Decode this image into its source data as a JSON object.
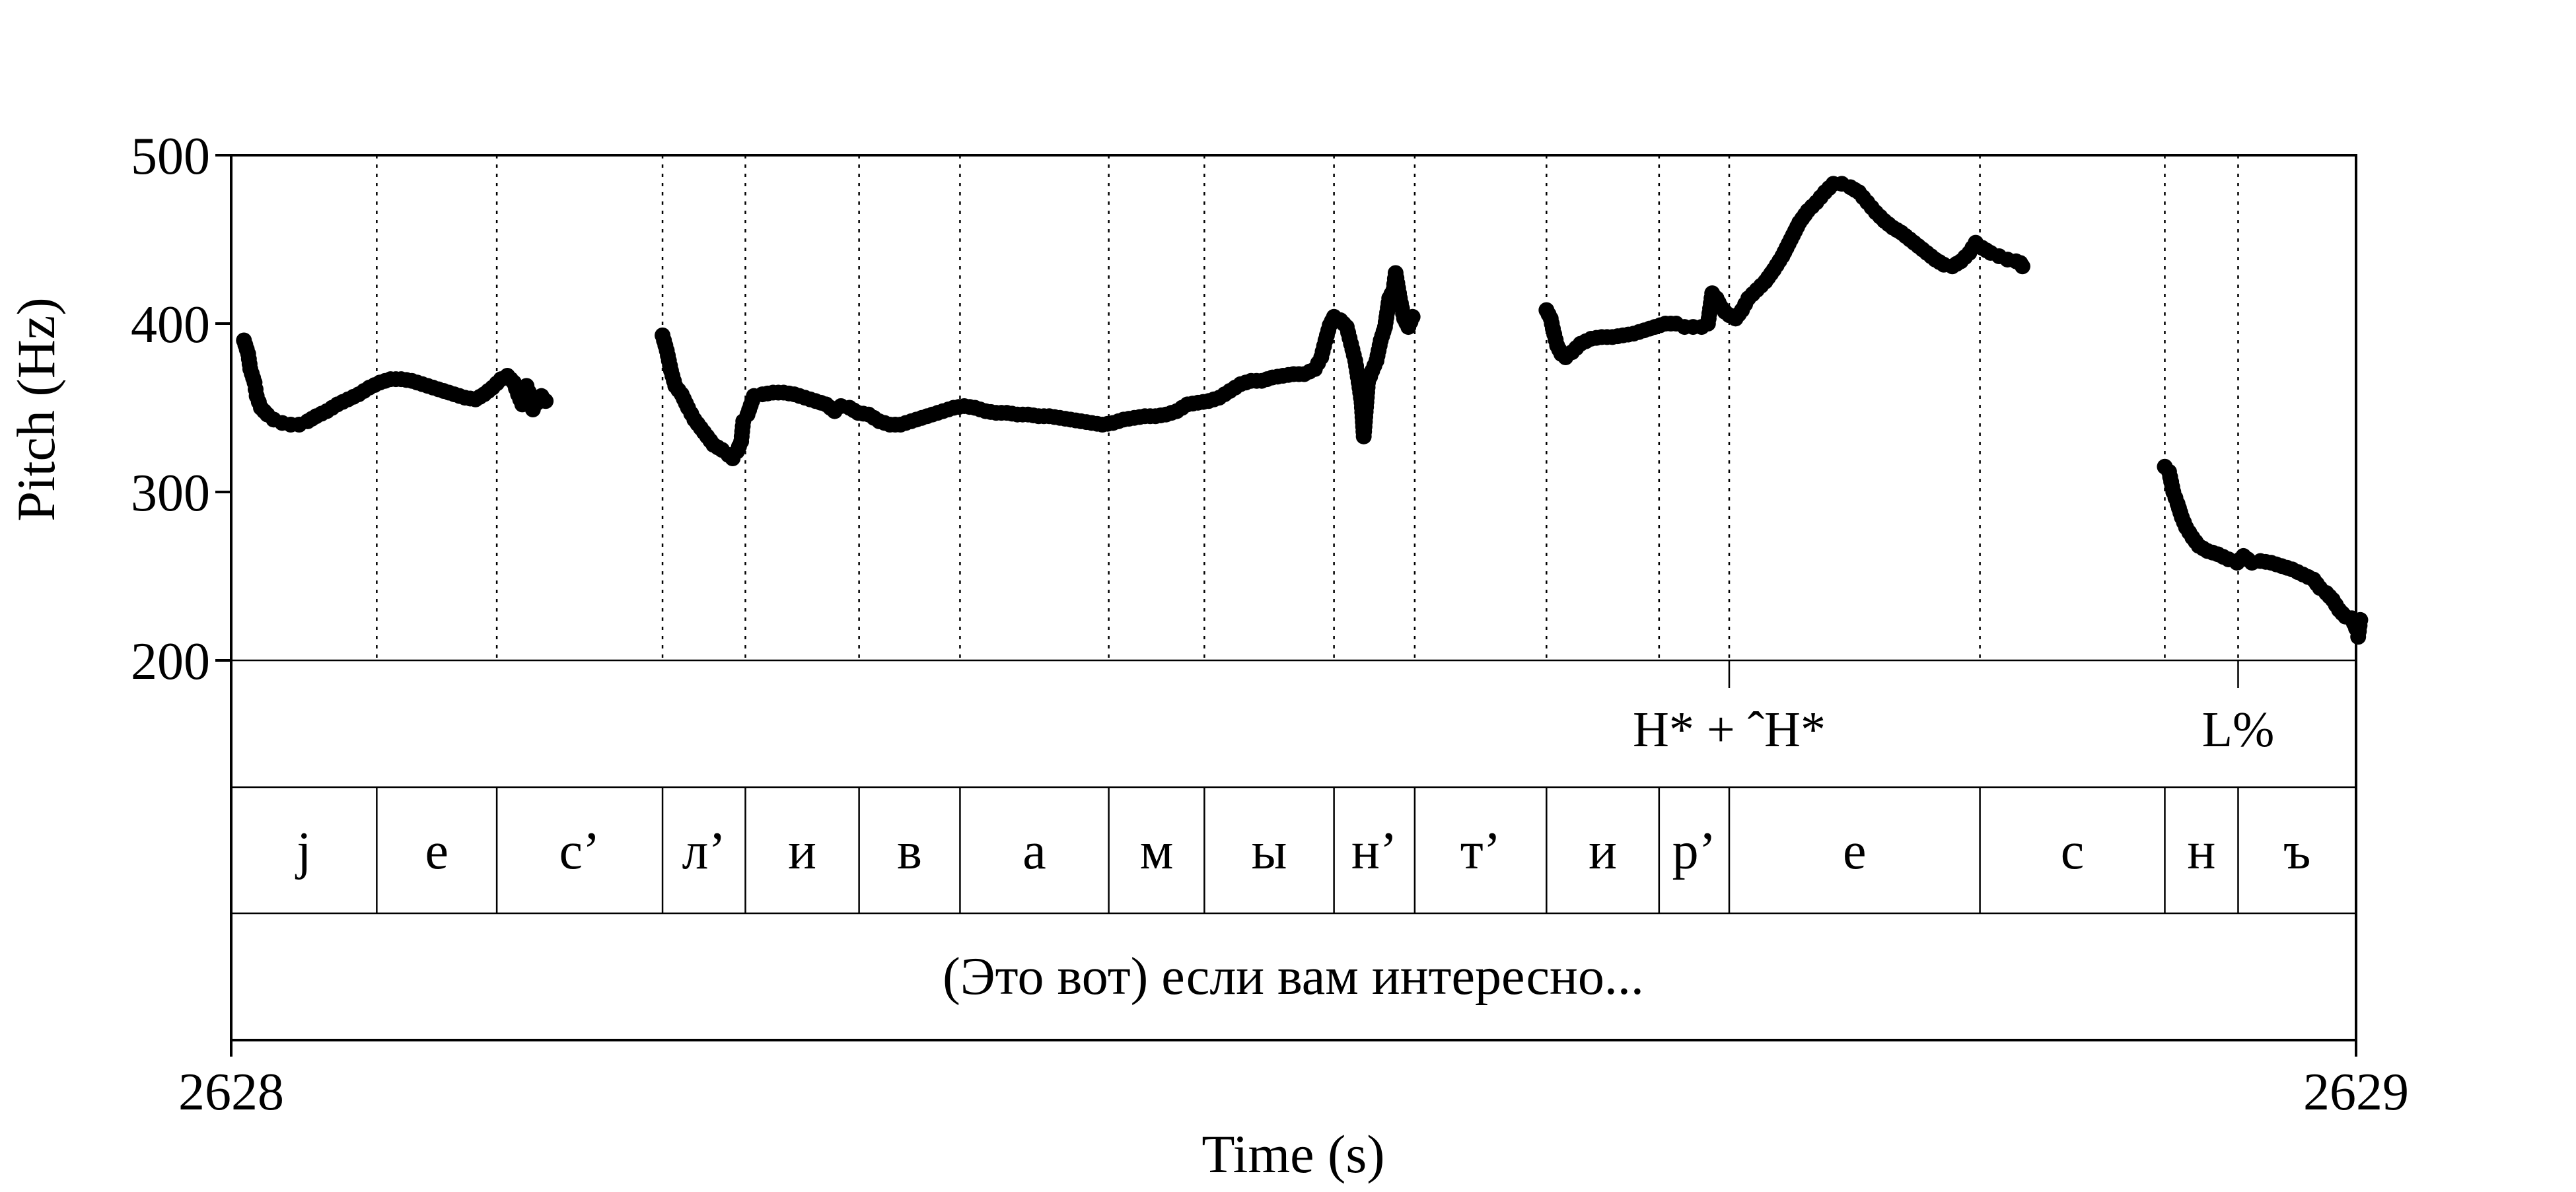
{
  "chart_data": {
    "type": "scatter",
    "xlabel": "Time (s)",
    "ylabel": "Pitch (Hz)",
    "xlim": [
      2628,
      2629
    ],
    "ylim": [
      200,
      500
    ],
    "x_tick_labels": [
      "2628",
      "2629"
    ],
    "y_tick_labels": [
      "500",
      "400",
      "300",
      "200"
    ],
    "y_ticks": [
      500,
      400,
      300,
      200
    ],
    "grid": false,
    "legend": "none",
    "phone_boundaries": [
      2628.0685,
      2628.125,
      2628.203,
      2628.242,
      2628.2955,
      2628.343,
      2628.413,
      2628.458,
      2628.519,
      2628.557,
      2628.619,
      2628.672,
      2628.705,
      2628.823,
      2628.91,
      2628.9445
    ],
    "phones": [
      "j",
      "е",
      "с’",
      "л’",
      "и",
      "в",
      "а",
      "м",
      "ы",
      "н’",
      "т’",
      "и",
      "р’",
      "е",
      "с",
      "н",
      "ъ"
    ],
    "tones": [
      {
        "label": "H* + ˆH*",
        "time": 2628.705
      },
      {
        "label": "L%",
        "time": 2628.9445
      }
    ],
    "utterance": "(Это вот) если вам интересно...",
    "series": [
      {
        "segments": [
          [
            [
              2628.006,
              390
            ],
            [
              2628.008,
              382
            ],
            [
              2628.009,
              373
            ],
            [
              2628.011,
              365
            ],
            [
              2628.012,
              357
            ],
            [
              2628.014,
              350
            ],
            [
              2628.017,
              346
            ],
            [
              2628.02,
              343
            ],
            [
              2628.024,
              341
            ],
            [
              2628.028,
              340
            ],
            [
              2628.032,
              340
            ],
            [
              2628.036,
              342
            ],
            [
              2628.04,
              345
            ],
            [
              2628.045,
              348
            ],
            [
              2628.05,
              352
            ],
            [
              2628.055,
              355
            ],
            [
              2628.06,
              358
            ],
            [
              2628.065,
              362
            ],
            [
              2628.07,
              365
            ],
            [
              2628.075,
              367
            ],
            [
              2628.08,
              367
            ],
            [
              2628.085,
              366
            ],
            [
              2628.09,
              364
            ],
            [
              2628.095,
              362
            ],
            [
              2628.1,
              360
            ],
            [
              2628.105,
              358
            ],
            [
              2628.11,
              356
            ],
            [
              2628.115,
              355
            ],
            [
              2628.119,
              358
            ],
            [
              2628.123,
              362
            ],
            [
              2628.127,
              367
            ],
            [
              2628.13,
              369
            ],
            [
              2628.133,
              365
            ],
            [
              2628.135,
              358
            ],
            [
              2628.137,
              352
            ],
            [
              2628.139,
              363
            ],
            [
              2628.141,
              356
            ],
            [
              2628.142,
              349
            ],
            [
              2628.144,
              353
            ],
            [
              2628.146,
              357
            ],
            [
              2628.148,
              354
            ]
          ],
          [
            [
              2628.203,
              393
            ],
            [
              2628.205,
              384
            ],
            [
              2628.207,
              372
            ],
            [
              2628.209,
              363
            ],
            [
              2628.212,
              358
            ],
            [
              2628.215,
              350
            ],
            [
              2628.218,
              343
            ],
            [
              2628.221,
              338
            ],
            [
              2628.224,
              333
            ],
            [
              2628.227,
              328
            ],
            [
              2628.231,
              325
            ],
            [
              2628.234,
              322
            ],
            [
              2628.236,
              320
            ],
            [
              2628.238,
              324
            ],
            [
              2628.24,
              330
            ],
            [
              2628.241,
              342
            ],
            [
              2628.243,
              346
            ],
            [
              2628.246,
              357
            ],
            [
              2628.25,
              358
            ],
            [
              2628.255,
              359
            ],
            [
              2628.26,
              359
            ],
            [
              2628.265,
              358
            ],
            [
              2628.27,
              356
            ],
            [
              2628.275,
              354
            ],
            [
              2628.28,
              352
            ],
            [
              2628.284,
              348
            ],
            [
              2628.287,
              351
            ],
            [
              2628.291,
              350
            ],
            [
              2628.295,
              347
            ],
            [
              2628.3,
              346
            ],
            [
              2628.305,
              342
            ],
            [
              2628.31,
              340
            ],
            [
              2628.315,
              340
            ],
            [
              2628.32,
              342
            ],
            [
              2628.325,
              344
            ],
            [
              2628.33,
              346
            ],
            [
              2628.335,
              348
            ],
            [
              2628.34,
              350
            ],
            [
              2628.345,
              351
            ],
            [
              2628.35,
              350
            ],
            [
              2628.355,
              348
            ],
            [
              2628.36,
              347
            ],
            [
              2628.365,
              347
            ],
            [
              2628.37,
              346
            ],
            [
              2628.375,
              346
            ],
            [
              2628.38,
              345
            ],
            [
              2628.385,
              345
            ],
            [
              2628.39,
              344
            ],
            [
              2628.395,
              343
            ],
            [
              2628.4,
              342
            ],
            [
              2628.405,
              341
            ],
            [
              2628.41,
              340
            ],
            [
              2628.415,
              341
            ],
            [
              2628.42,
              343
            ],
            [
              2628.425,
              344
            ],
            [
              2628.43,
              345
            ],
            [
              2628.435,
              345
            ],
            [
              2628.44,
              346
            ],
            [
              2628.445,
              348
            ],
            [
              2628.45,
              352
            ],
            [
              2628.455,
              353
            ],
            [
              2628.46,
              354
            ],
            [
              2628.465,
              356
            ],
            [
              2628.47,
              360
            ],
            [
              2628.475,
              364
            ],
            [
              2628.48,
              366
            ],
            [
              2628.485,
              366
            ],
            [
              2628.49,
              368
            ],
            [
              2628.495,
              369
            ],
            [
              2628.5,
              370
            ],
            [
              2628.505,
              370
            ],
            [
              2628.51,
              373
            ],
            [
              2628.513,
              380
            ],
            [
              2628.515,
              390
            ],
            [
              2628.517,
              399
            ],
            [
              2628.519,
              404
            ],
            [
              2628.522,
              402
            ],
            [
              2628.525,
              398
            ],
            [
              2628.527,
              388
            ],
            [
              2628.529,
              378
            ],
            [
              2628.531,
              362
            ],
            [
              2628.532,
              353
            ],
            [
              2628.533,
              333
            ],
            [
              2628.535,
              365
            ],
            [
              2628.537,
              372
            ],
            [
              2628.539,
              378
            ],
            [
              2628.541,
              390
            ],
            [
              2628.543,
              398
            ],
            [
              2628.545,
              415
            ],
            [
              2628.547,
              420
            ],
            [
              2628.548,
              430
            ],
            [
              2628.55,
              415
            ],
            [
              2628.552,
              403
            ],
            [
              2628.554,
              398
            ],
            [
              2628.556,
              404
            ]
          ],
          [
            [
              2628.619,
              408
            ],
            [
              2628.621,
              403
            ],
            [
              2628.622,
              397
            ],
            [
              2628.624,
              387
            ],
            [
              2628.626,
              382
            ],
            [
              2628.628,
              380
            ],
            [
              2628.631,
              383
            ],
            [
              2628.635,
              388
            ],
            [
              2628.64,
              391
            ],
            [
              2628.645,
              392
            ],
            [
              2628.65,
              392
            ],
            [
              2628.655,
              393
            ],
            [
              2628.66,
              394
            ],
            [
              2628.665,
              396
            ],
            [
              2628.67,
              398
            ],
            [
              2628.675,
              400
            ],
            [
              2628.68,
              400
            ],
            [
              2628.684,
              398
            ],
            [
              2628.688,
              398
            ],
            [
              2628.692,
              398
            ],
            [
              2628.695,
              400
            ],
            [
              2628.697,
              418
            ],
            [
              2628.699,
              415
            ],
            [
              2628.701,
              410
            ],
            [
              2628.703,
              407
            ],
            [
              2628.705,
              405
            ],
            [
              2628.708,
              403
            ],
            [
              2628.711,
              408
            ],
            [
              2628.714,
              415
            ],
            [
              2628.718,
              420
            ],
            [
              2628.722,
              425
            ],
            [
              2628.726,
              432
            ],
            [
              2628.73,
              440
            ],
            [
              2628.734,
              450
            ],
            [
              2628.738,
              460
            ],
            [
              2628.742,
              467
            ],
            [
              2628.746,
              472
            ],
            [
              2628.75,
              478
            ],
            [
              2628.754,
              483
            ],
            [
              2628.758,
              483
            ],
            [
              2628.762,
              481
            ],
            [
              2628.766,
              478
            ],
            [
              2628.77,
              472
            ],
            [
              2628.774,
              466
            ],
            [
              2628.778,
              461
            ],
            [
              2628.782,
              457
            ],
            [
              2628.786,
              454
            ],
            [
              2628.79,
              450
            ],
            [
              2628.794,
              446
            ],
            [
              2628.798,
              442
            ],
            [
              2628.802,
              438
            ],
            [
              2628.806,
              435
            ],
            [
              2628.81,
              434
            ],
            [
              2628.814,
              437
            ],
            [
              2628.818,
              442
            ],
            [
              2628.821,
              448
            ],
            [
              2628.824,
              445
            ],
            [
              2628.828,
              442
            ],
            [
              2628.832,
              440
            ],
            [
              2628.836,
              438
            ],
            [
              2628.84,
              437
            ],
            [
              2628.842,
              436
            ],
            [
              2628.843,
              434
            ]
          ],
          [
            [
              2628.91,
              315
            ],
            [
              2628.912,
              312
            ],
            [
              2628.914,
              300
            ],
            [
              2628.916,
              293
            ],
            [
              2628.918,
              285
            ],
            [
              2628.92,
              279
            ],
            [
              2628.923,
              273
            ],
            [
              2628.926,
              268
            ],
            [
              2628.93,
              265
            ],
            [
              2628.935,
              263
            ],
            [
              2628.94,
              260
            ],
            [
              2628.944,
              258
            ],
            [
              2628.947,
              262
            ],
            [
              2628.951,
              258
            ],
            [
              2628.955,
              259
            ],
            [
              2628.96,
              258
            ],
            [
              2628.965,
              256
            ],
            [
              2628.97,
              254
            ],
            [
              2628.975,
              251
            ],
            [
              2628.98,
              248
            ],
            [
              2628.983,
              243
            ],
            [
              2628.986,
              240
            ],
            [
              2628.989,
              236
            ],
            [
              2628.992,
              230
            ],
            [
              2628.995,
              226
            ],
            [
              2628.998,
              225
            ],
            [
              2629.0,
              219
            ],
            [
              2629.001,
              214
            ],
            [
              2629.002,
              224
            ]
          ]
        ]
      }
    ]
  }
}
